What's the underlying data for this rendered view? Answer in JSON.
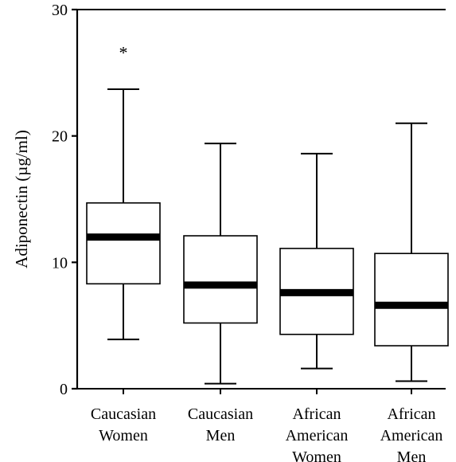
{
  "chart_data": {
    "type": "box",
    "title": "",
    "xlabel": "",
    "ylabel": "Adiponectin (µg/ml)",
    "ylim": [
      0,
      30
    ],
    "yticks": [
      0,
      10,
      20,
      30
    ],
    "ytick_labels": [
      "0",
      "10",
      "20",
      "30"
    ],
    "grid": false,
    "legend": "none",
    "categories": [
      [
        "Caucasian",
        "Women"
      ],
      [
        "Caucasian",
        "Men"
      ],
      [
        "African",
        "American",
        "Women"
      ],
      [
        "African",
        "American",
        "Men"
      ]
    ],
    "boxes": [
      {
        "whisker_low": 3.9,
        "q1": 8.3,
        "median": 12.0,
        "q3": 14.7,
        "whisker_high": 23.7,
        "outliers": [
          "*"
        ],
        "outlier_value": 27.0
      },
      {
        "whisker_low": 0.4,
        "q1": 5.2,
        "median": 8.2,
        "q3": 12.1,
        "whisker_high": 19.4,
        "outliers": []
      },
      {
        "whisker_low": 1.6,
        "q1": 4.3,
        "median": 7.6,
        "q3": 11.1,
        "whisker_high": 18.6,
        "outliers": []
      },
      {
        "whisker_low": 0.6,
        "q1": 3.4,
        "median": 6.6,
        "q3": 10.7,
        "whisker_high": 21.0,
        "outliers": []
      }
    ],
    "colors": {
      "box_fill": "#ffffff",
      "stroke": "#000000",
      "median": "#000000"
    }
  }
}
